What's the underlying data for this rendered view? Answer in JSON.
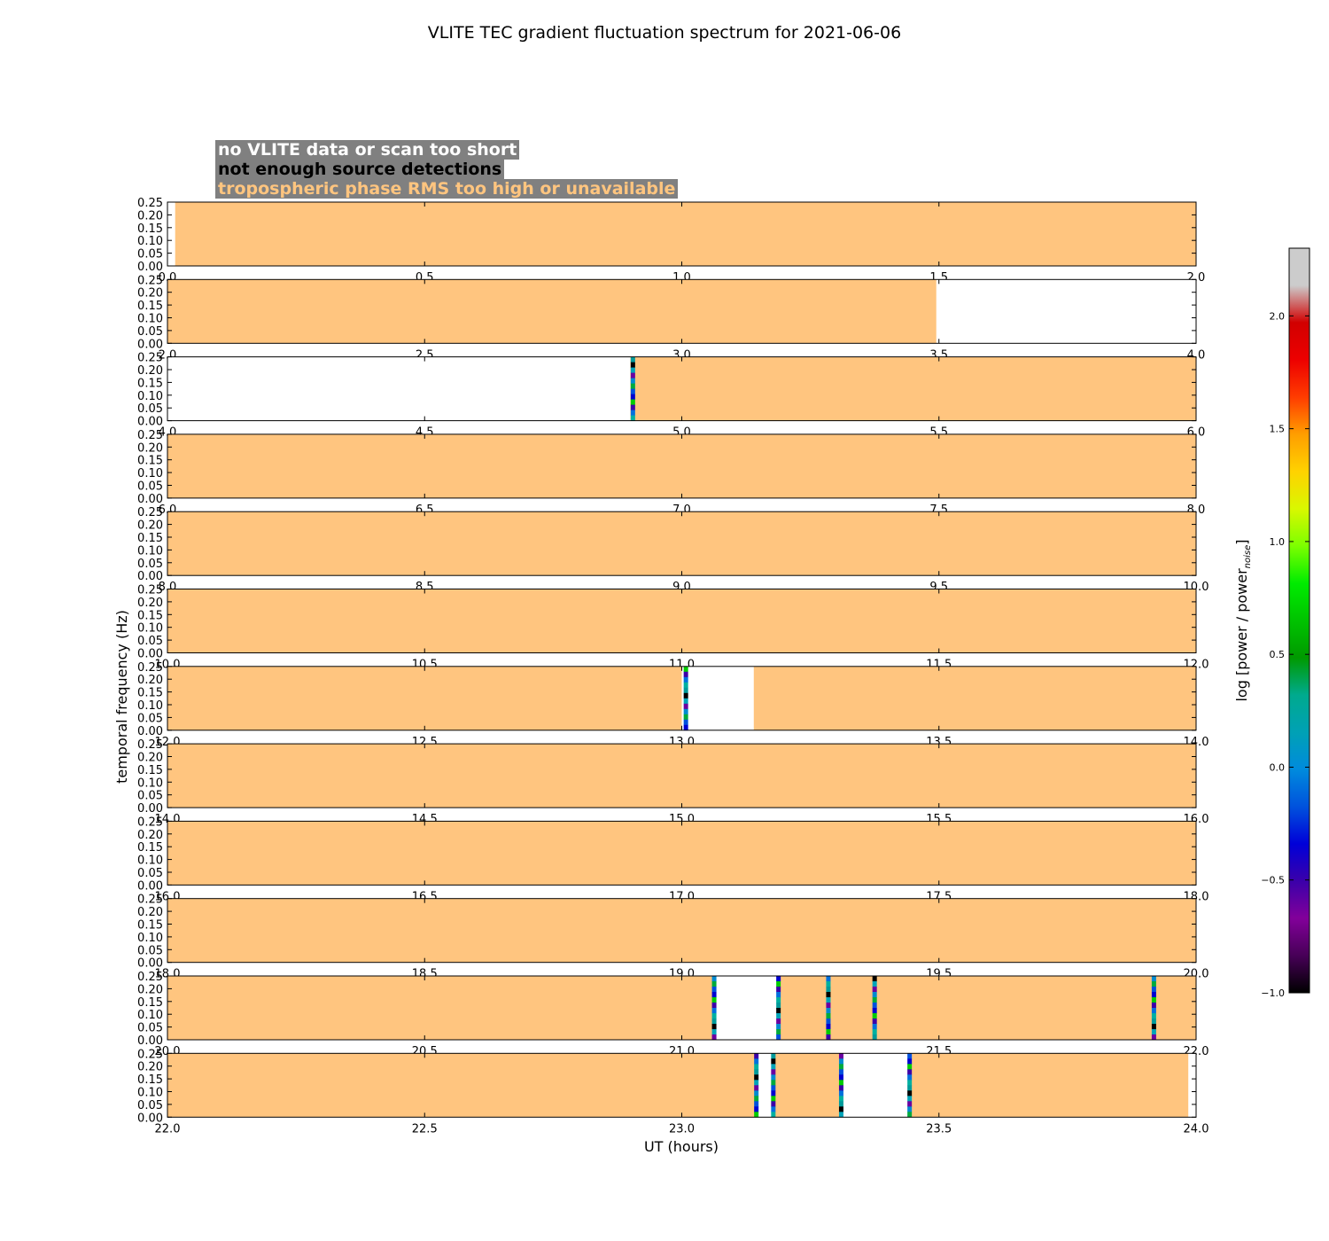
{
  "chart_data": {
    "type": "heatmap",
    "title": "VLITE TEC gradient fluctuation spectrum for 2021-06-06",
    "xlabel": "UT (hours)",
    "ylabel": "temporal frequency (Hz)",
    "ylim": [
      0,
      0.25
    ],
    "yticks": [
      "0.00",
      "0.05",
      "0.10",
      "0.15",
      "0.20",
      "0.25"
    ],
    "colorbar": {
      "label": "log [power / power_noise]",
      "label_main": "log [power / power",
      "label_sub": "noise",
      "label_end": "]",
      "range": [
        -1.0,
        2.3
      ],
      "ticks": [
        "−1.0",
        "−0.5",
        "0.0",
        "0.5",
        "1.0",
        "1.5",
        "2.0"
      ],
      "tick_values": [
        -1.0,
        -0.5,
        0.0,
        0.5,
        1.0,
        1.5,
        2.0
      ],
      "colormap": "nipy_spectral"
    },
    "legend": [
      {
        "label": "no VLITE data or scan too short",
        "color": "#ffffff"
      },
      {
        "label": "not enough source detections",
        "color": "#000000"
      },
      {
        "label": "tropospheric phase RMS too high or unavailable",
        "color": "#ffc57f"
      }
    ],
    "panels": [
      {
        "xlim": [
          0,
          2
        ],
        "xticks": [
          "0.0",
          "0.5",
          "1.0",
          "1.5",
          "2.0"
        ],
        "segments": [
          {
            "from": 0.0,
            "to": 0.015,
            "status": "no_data"
          },
          {
            "from": 0.015,
            "to": 2.0,
            "status": "trop"
          }
        ],
        "spectra": []
      },
      {
        "xlim": [
          2,
          4
        ],
        "xticks": [
          "2.0",
          "2.5",
          "3.0",
          "3.5",
          "4.0"
        ],
        "segments": [
          {
            "from": 2.0,
            "to": 3.495,
            "status": "trop"
          },
          {
            "from": 3.495,
            "to": 4.0,
            "status": "no_data"
          }
        ],
        "spectra": []
      },
      {
        "xlim": [
          4,
          6
        ],
        "xticks": [
          "4.0",
          "4.5",
          "5.0",
          "5.5",
          "6.0"
        ],
        "segments": [
          {
            "from": 4.0,
            "to": 4.9,
            "status": "no_data"
          },
          {
            "from": 4.9,
            "to": 6.0,
            "status": "trop"
          }
        ],
        "spectra": [
          4.905
        ]
      },
      {
        "xlim": [
          6,
          8
        ],
        "xticks": [
          "6.0",
          "6.5",
          "7.0",
          "7.5",
          "8.0"
        ],
        "segments": [
          {
            "from": 6.0,
            "to": 8.0,
            "status": "trop"
          }
        ],
        "spectra": []
      },
      {
        "xlim": [
          8,
          10
        ],
        "xticks": [
          "8.0",
          "8.5",
          "9.0",
          "9.5",
          "10.0"
        ],
        "segments": [
          {
            "from": 8.0,
            "to": 10.0,
            "status": "trop"
          }
        ],
        "spectra": []
      },
      {
        "xlim": [
          10,
          12
        ],
        "xticks": [
          "10.0",
          "10.5",
          "11.0",
          "11.5",
          "12.0"
        ],
        "segments": [
          {
            "from": 10.0,
            "to": 12.0,
            "status": "trop"
          }
        ],
        "spectra": []
      },
      {
        "xlim": [
          12,
          14
        ],
        "xticks": [
          "12.0",
          "12.5",
          "13.0",
          "13.5",
          "14.0"
        ],
        "segments": [
          {
            "from": 12.0,
            "to": 13.0,
            "status": "trop"
          },
          {
            "from": 13.01,
            "to": 13.14,
            "status": "no_data"
          },
          {
            "from": 13.14,
            "to": 14.0,
            "status": "trop"
          }
        ],
        "spectra": [
          13.008
        ]
      },
      {
        "xlim": [
          14,
          16
        ],
        "xticks": [
          "14.0",
          "14.5",
          "15.0",
          "15.5",
          "16.0"
        ],
        "segments": [
          {
            "from": 14.0,
            "to": 16.0,
            "status": "trop"
          }
        ],
        "spectra": []
      },
      {
        "xlim": [
          16,
          18
        ],
        "xticks": [
          "16.0",
          "16.5",
          "17.0",
          "17.5",
          "18.0"
        ],
        "segments": [
          {
            "from": 16.0,
            "to": 18.0,
            "status": "trop"
          }
        ],
        "spectra": []
      },
      {
        "xlim": [
          18,
          20
        ],
        "xticks": [
          "18.0",
          "18.5",
          "19.0",
          "19.5",
          "20.0"
        ],
        "segments": [
          {
            "from": 18.0,
            "to": 20.0,
            "status": "trop"
          }
        ],
        "spectra": []
      },
      {
        "xlim": [
          20,
          22
        ],
        "xticks": [
          "20.0",
          "20.5",
          "21.0",
          "21.5",
          "22.0"
        ],
        "segments": [
          {
            "from": 20.0,
            "to": 21.06,
            "status": "trop"
          },
          {
            "from": 21.075,
            "to": 21.185,
            "status": "no_data"
          },
          {
            "from": 21.19,
            "to": 22.0,
            "status": "trop"
          }
        ],
        "spectra": [
          21.063,
          21.188,
          21.285,
          21.375,
          21.918
        ]
      },
      {
        "xlim": [
          22,
          24
        ],
        "xticks": [
          "22.0",
          "22.5",
          "23.0",
          "23.5",
          "24.0"
        ],
        "segments": [
          {
            "from": 22.0,
            "to": 23.145,
            "status": "trop"
          },
          {
            "from": 23.15,
            "to": 23.175,
            "status": "no_data"
          },
          {
            "from": 23.18,
            "to": 23.31,
            "status": "trop"
          },
          {
            "from": 23.315,
            "to": 23.44,
            "status": "no_data"
          },
          {
            "from": 23.445,
            "to": 23.985,
            "status": "trop"
          },
          {
            "from": 23.985,
            "to": 24.0,
            "status": "no_data"
          }
        ],
        "spectra": [
          23.145,
          23.178,
          23.31,
          23.443
        ]
      }
    ]
  }
}
